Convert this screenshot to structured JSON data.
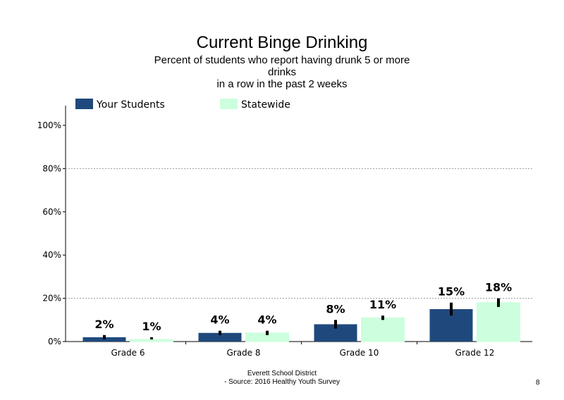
{
  "slide": {
    "title": "Current Binge Drinking",
    "subtitle_lines": [
      "Percent of students  who report having drunk 5 or more",
      "drinks",
      "in a row in the past 2 weeks"
    ],
    "footer_lines": [
      "Everett School District",
      "- Source: 2016 Healthy  Youth Survey"
    ],
    "page_number": "8"
  },
  "chart_data": {
    "type": "bar",
    "title": "Current Binge Drinking",
    "categories": [
      "Grade 6",
      "Grade 8",
      "Grade 10",
      "Grade 12"
    ],
    "series": [
      {
        "name": "Your Students",
        "color": "#1f497d",
        "values": [
          2,
          4,
          8,
          15
        ],
        "labels": [
          "2%",
          "4%",
          "8%",
          "15%"
        ],
        "error": [
          [
            1,
            3
          ],
          [
            3,
            5
          ],
          [
            6,
            10
          ],
          [
            12,
            18
          ]
        ]
      },
      {
        "name": "Statewide",
        "color": "#ccffdd",
        "values": [
          1,
          4,
          11,
          18
        ],
        "labels": [
          "1%",
          "4%",
          "11%",
          "18%"
        ],
        "error": [
          [
            1,
            2
          ],
          [
            3,
            5
          ],
          [
            10,
            12
          ],
          [
            16,
            20
          ]
        ]
      }
    ],
    "ylim": [
      0,
      110
    ],
    "yticks": [
      {
        "value": 0,
        "label": "0%"
      },
      {
        "value": 20,
        "label": "20%"
      },
      {
        "value": 40,
        "label": "40%"
      },
      {
        "value": 60,
        "label": "60%"
      },
      {
        "value": 80,
        "label": "80%"
      },
      {
        "value": 100,
        "label": "100%"
      }
    ],
    "gridlines_at": [
      20,
      80
    ],
    "legend_position": "top-left",
    "xlabel": "",
    "ylabel": ""
  }
}
